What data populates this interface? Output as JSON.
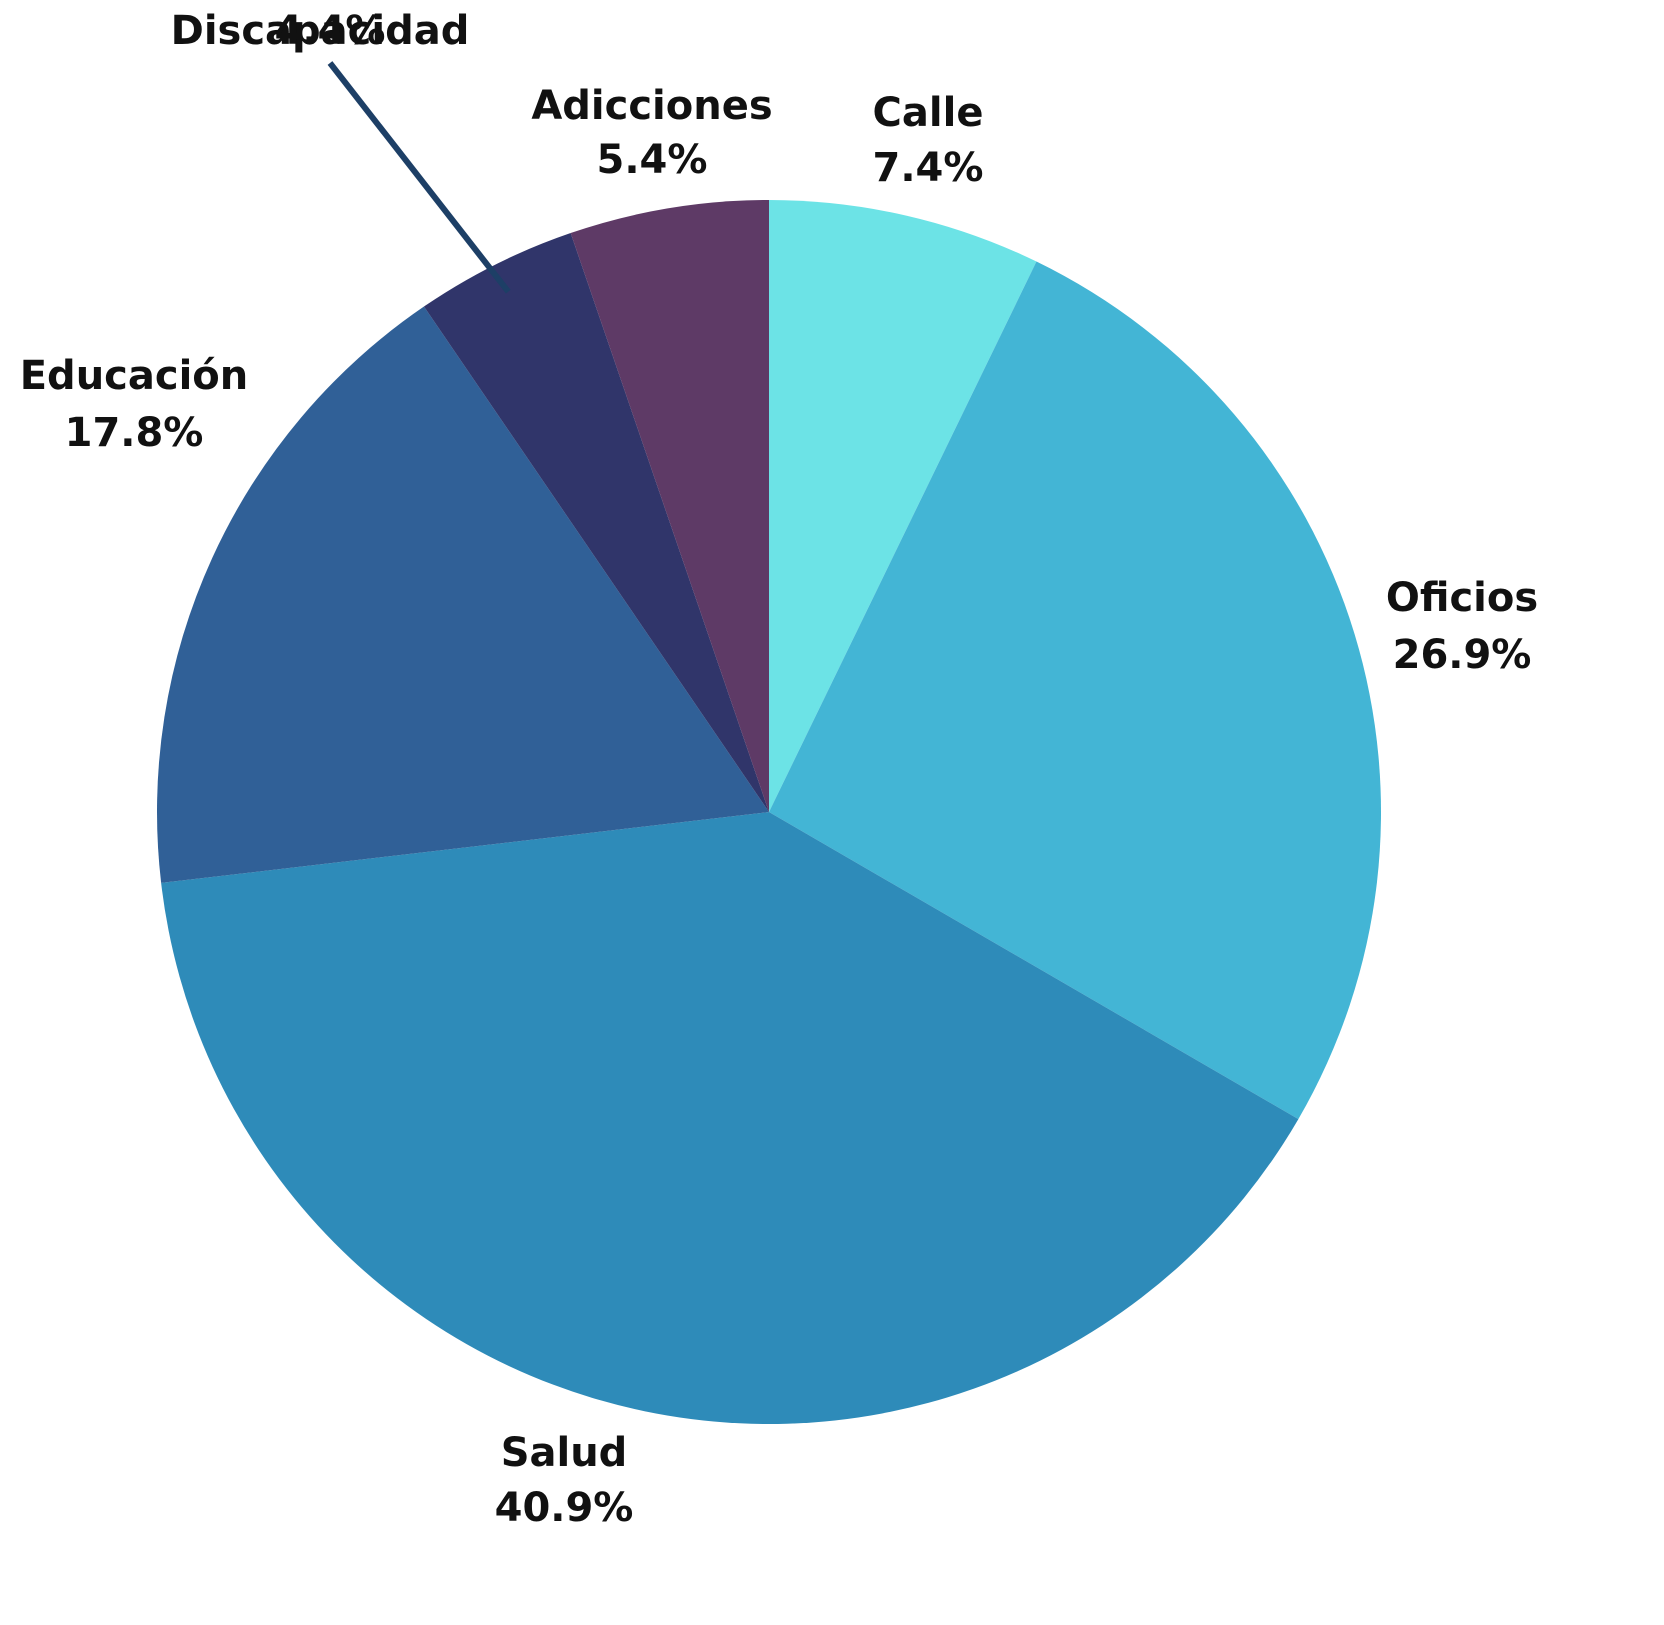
{
  "chart_data": {
    "type": "pie",
    "categories": [
      "Calle",
      "Oficios",
      "Salud",
      "Educación",
      "Discapacidad",
      "Adicciones"
    ],
    "values": [
      7.4,
      26.9,
      40.9,
      17.8,
      4.4,
      5.4
    ],
    "value_labels": [
      "7.4%",
      "26.9%",
      "40.9%",
      "17.8%",
      "4.4%",
      "5.4%"
    ],
    "colors": [
      "#6ce3e6",
      "#43b5d5",
      "#2e8bb9",
      "#306097",
      "#30356a",
      "#5e3a66"
    ]
  }
}
